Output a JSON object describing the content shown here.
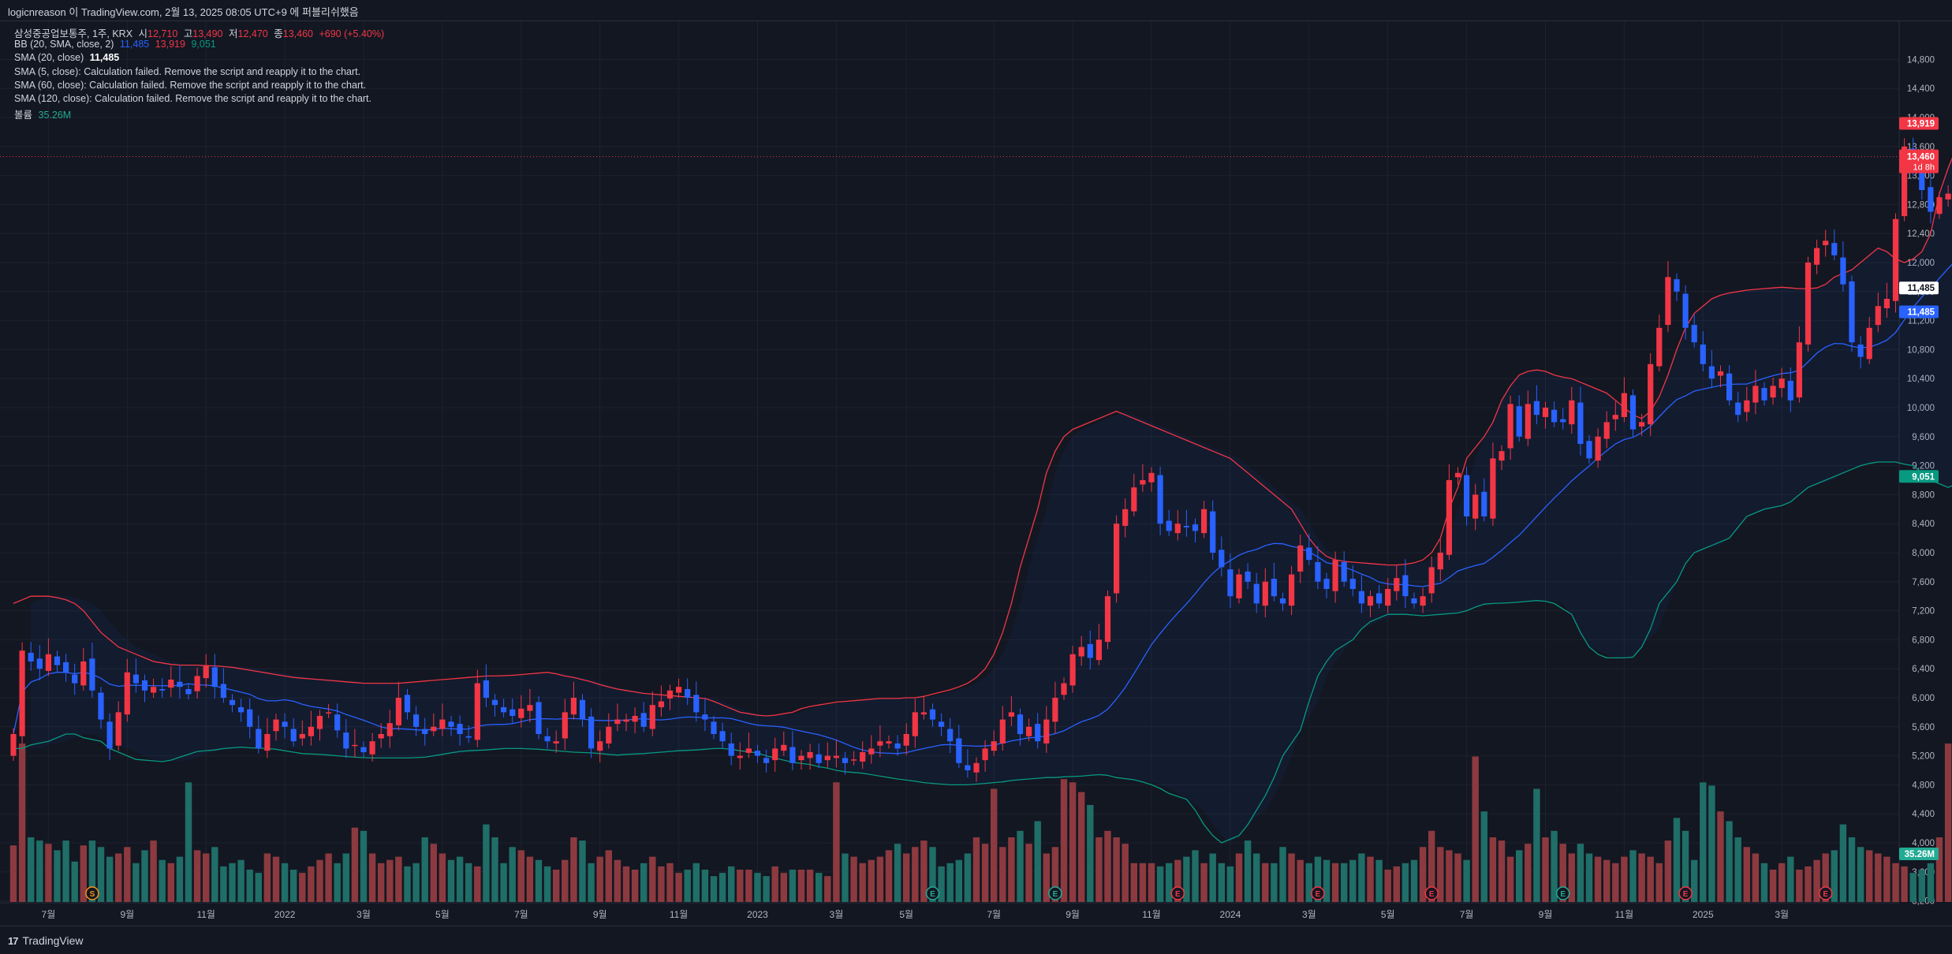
{
  "header": {
    "text": "logicnreason 이 TradingView.com, 2월 13, 2025 08:05 UTC+9 에 퍼블리쉬했음"
  },
  "legend": {
    "symbol": "삼성중공업보통주, 1주, KRX",
    "o_label": "시",
    "o_val": "12,710",
    "h_label": "고",
    "h_val": "13,490",
    "l_label": "저",
    "l_val": "12,470",
    "c_label": "종",
    "c_val": "13,460",
    "chg": "+690 (+5.40%)",
    "bb_label": "BB (20, SMA, close, 2)",
    "bb_basis": "11,485",
    "bb_upper": "13,919",
    "bb_lower": "9,051",
    "sma20_label": "SMA (20, close)",
    "sma20_val": "11,485",
    "sma5": "SMA (5, close): Calculation failed. Remove the script and reapply it to the chart.",
    "sma60": "SMA (60, close): Calculation failed. Remove the script and reapply it to the chart.",
    "sma120": "SMA (120, close): Calculation failed. Remove the script and reapply it to the chart.",
    "vol_label": "볼륨",
    "vol_val": "35.26M"
  },
  "price_labels": {
    "upper": "13,919",
    "last": "13,460",
    "countdown": "1d 8h",
    "sma": "11,485",
    "basis": "11,485",
    "lower": "9,051",
    "volume": "35.26M"
  },
  "footer": {
    "brand": "TradingView",
    "logo": "17"
  },
  "colors": {
    "bg": "#131722",
    "up": "#f23645",
    "down": "#2962ff",
    "bb_upper": "#f23645",
    "bb_basis": "#2962ff",
    "bb_lower": "#089981",
    "vol_up": "#8c3a3f",
    "vol_down": "#1f6e67",
    "grid": "#1e222d",
    "text": "#b2b5be"
  },
  "chart_data": {
    "type": "candlestick",
    "title": "삼성중공업보통주, 1주, KRX",
    "y_ticks": [
      3200,
      3600,
      4000,
      4400,
      4800,
      5200,
      5600,
      6000,
      6400,
      6800,
      7200,
      7600,
      8000,
      8400,
      8800,
      9200,
      9600,
      10000,
      10400,
      10800,
      11200,
      11600,
      12000,
      12400,
      12800,
      13200,
      13600,
      14000,
      14400,
      14800
    ],
    "x_ticks": [
      {
        "i": 4,
        "label": "7월"
      },
      {
        "i": 13,
        "label": "9월"
      },
      {
        "i": 22,
        "label": "11월"
      },
      {
        "i": 31,
        "label": "2022"
      },
      {
        "i": 40,
        "label": "3월"
      },
      {
        "i": 49,
        "label": "5월"
      },
      {
        "i": 58,
        "label": "7월"
      },
      {
        "i": 67,
        "label": "9월"
      },
      {
        "i": 76,
        "label": "11월"
      },
      {
        "i": 85,
        "label": "2023"
      },
      {
        "i": 94,
        "label": "3월"
      },
      {
        "i": 102,
        "label": "5월"
      },
      {
        "i": 112,
        "label": "7월"
      },
      {
        "i": 121,
        "label": "9월"
      },
      {
        "i": 130,
        "label": "11월"
      },
      {
        "i": 139,
        "label": "2024"
      },
      {
        "i": 148,
        "label": "3월"
      },
      {
        "i": 157,
        "label": "5월"
      },
      {
        "i": 166,
        "label": "7월"
      },
      {
        "i": 175,
        "label": "9월"
      },
      {
        "i": 184,
        "label": "11월"
      },
      {
        "i": 193,
        "label": "2025"
      },
      {
        "i": 202,
        "label": "3월"
      }
    ],
    "closes": [
      5500,
      6650,
      6500,
      6400,
      6600,
      6450,
      6350,
      6200,
      6500,
      6100,
      5700,
      5300,
      5800,
      6350,
      6200,
      6100,
      6150,
      6100,
      6250,
      6150,
      6050,
      6300,
      6450,
      6150,
      6000,
      5900,
      5800,
      5600,
      5300,
      5500,
      5700,
      5600,
      5400,
      5500,
      5600,
      5750,
      5800,
      5550,
      5300,
      5350,
      5250,
      5400,
      5500,
      5650,
      6000,
      5800,
      5600,
      5500,
      5600,
      5700,
      5600,
      5500,
      5450,
      6200,
      6000,
      5900,
      5800,
      5750,
      5850,
      5900,
      5500,
      5400,
      5400,
      5800,
      6000,
      5700,
      5300,
      5400,
      5600,
      5700,
      5700,
      5750,
      5600,
      5900,
      5950,
      6100,
      6150,
      6000,
      5800,
      5700,
      5500,
      5400,
      5200,
      5200,
      5300,
      5200,
      5100,
      5300,
      5350,
      5100,
      5200,
      5250,
      5100,
      5200,
      5200,
      5100,
      5150,
      5250,
      5300,
      5400,
      5400,
      5300,
      5500,
      5800,
      5800,
      5700,
      5600,
      5400,
      5100,
      5000,
      5100,
      5300,
      5400,
      5700,
      5800,
      5500,
      5600,
      5400,
      5700,
      6000,
      6200,
      6600,
      6700,
      6550,
      6800,
      7400,
      8400,
      8600,
      8900,
      9000,
      9100,
      8400,
      8300,
      8400,
      8350,
      8300,
      8600,
      8000,
      7800,
      7400,
      7700,
      7600,
      7300,
      7600,
      7400,
      7300,
      7700,
      8100,
      7900,
      7600,
      7500,
      7900,
      7600,
      7500,
      7300,
      7400,
      7300,
      7500,
      7650,
      7400,
      7300,
      7400,
      7800,
      8000,
      9000,
      9100,
      8500,
      8800,
      8500,
      9300,
      9400,
      10050,
      9600,
      10050,
      9900,
      10000,
      9800,
      9800,
      10100,
      9500,
      9300,
      9600,
      9800,
      9900,
      10200,
      9700,
      9800,
      10600,
      11100,
      11800,
      11600,
      11100,
      10900,
      10600,
      10400,
      10500,
      10100,
      9900,
      10100,
      10300,
      10100,
      10300,
      10400,
      10100,
      10900,
      12000,
      12200,
      12300,
      12100,
      11700,
      10900,
      10700,
      11100,
      11400,
      11500,
      12600,
      13600,
      13300,
      13000,
      12700,
      12900,
      12950,
      12900,
      13460
    ],
    "bb_upper": [
      7300,
      7350,
      7400,
      7400,
      7400,
      7380,
      7350,
      7300,
      7200,
      7050,
      6900,
      6800,
      6700,
      6650,
      6600,
      6550,
      6500,
      6480,
      6460,
      6450,
      6450,
      6450,
      6440,
      6440,
      6430,
      6420,
      6400,
      6380,
      6360,
      6340,
      6320,
      6300,
      6280,
      6270,
      6260,
      6250,
      6240,
      6230,
      6220,
      6210,
      6200,
      6200,
      6200,
      6200,
      6200,
      6210,
      6220,
      6230,
      6240,
      6250,
      6260,
      6270,
      6280,
      6290,
      6300,
      6300,
      6310,
      6320,
      6330,
      6340,
      6350,
      6330,
      6300,
      6280,
      6250,
      6220,
      6180,
      6150,
      6120,
      6100,
      6080,
      6060,
      6050,
      6040,
      6030,
      6020,
      6010,
      6000,
      5990,
      5950,
      5900,
      5850,
      5800,
      5780,
      5760,
      5750,
      5760,
      5780,
      5800,
      5850,
      5880,
      5900,
      5920,
      5940,
      5950,
      5960,
      5970,
      5980,
      5990,
      5990,
      5990,
      6000,
      6000,
      6020,
      6050,
      6080,
      6110,
      6150,
      6200,
      6280,
      6400,
      6600,
      6900,
      7300,
      7800,
      8200,
      8600,
      9100,
      9400,
      9600,
      9700,
      9750,
      9800,
      9850,
      9900,
      9950,
      9900,
      9850,
      9800,
      9750,
      9700,
      9650,
      9600,
      9550,
      9500,
      9450,
      9400,
      9350,
      9300,
      9200,
      9100,
      9000,
      8900,
      8800,
      8700,
      8600,
      8400,
      8200,
      8050,
      7950,
      7900,
      7880,
      7870,
      7860,
      7850,
      7840,
      7830,
      7830,
      7840,
      7860,
      7900,
      8000,
      8200,
      8600,
      8900,
      9300,
      9600,
      9800,
      10100,
      10300,
      10450,
      10500,
      10520,
      10500,
      10450,
      10420,
      10400,
      10350,
      10300,
      10250,
      10200,
      10100,
      10000,
      9900,
      9850,
      9950,
      10150,
      10450,
      10800,
      11100,
      11300,
      11400,
      11500,
      11550,
      11580,
      11600,
      11620,
      11630,
      11640,
      11650,
      11660,
      11650,
      11640,
      11640,
      11650,
      11700,
      11800,
      11850,
      11900,
      12000,
      12100,
      12200,
      12150,
      12050,
      12000,
      12050,
      12150,
      12400,
      12950,
      13300,
      13600,
      13919
    ],
    "bb_lower": [
      5300,
      5300,
      5350,
      5400,
      5450,
      5500,
      5500,
      5450,
      5400,
      5300,
      5250,
      5200,
      5150,
      5130,
      5120,
      5140,
      5180,
      5220,
      5260,
      5280,
      5300,
      5310,
      5320,
      5310,
      5300,
      5290,
      5270,
      5250,
      5230,
      5220,
      5210,
      5200,
      5190,
      5180,
      5170,
      5170,
      5170,
      5170,
      5170,
      5180,
      5200,
      5220,
      5240,
      5260,
      5270,
      5280,
      5290,
      5300,
      5300,
      5300,
      5290,
      5280,
      5270,
      5260,
      5250,
      5240,
      5230,
      5220,
      5210,
      5220,
      5230,
      5240,
      5250,
      5260,
      5270,
      5280,
      5290,
      5300,
      5300,
      5290,
      5270,
      5240,
      5200,
      5170,
      5140,
      5110,
      5080,
      5050,
      5030,
      5000,
      4980,
      4960,
      4940,
      4920,
      4900,
      4880,
      4850,
      4830,
      4820,
      4810,
      4800,
      4800,
      4810,
      4820,
      4830,
      4840,
      4860,
      4880,
      4890,
      4900,
      4900,
      4910,
      4920,
      4930,
      4940,
      4930,
      4900,
      4870,
      4840,
      4800,
      4750,
      4680,
      4600,
      4450,
      4250,
      4100,
      4000,
      4100,
      4250,
      4450,
      4650,
      4900,
      5200,
      5550,
      5950,
      6300,
      6500,
      6650,
      6800,
      6950,
      7050,
      7100,
      7150,
      7150,
      7140,
      7130,
      7140,
      7150,
      7170,
      7200,
      7250,
      7290,
      7300,
      7310,
      7320,
      7330,
      7340,
      7330,
      7300,
      7150,
      6900,
      6700,
      6600,
      6550,
      6550,
      6560,
      6700,
      6950,
      7300,
      7600,
      7850,
      8000,
      8050,
      8100,
      8200,
      8350,
      8500,
      8550,
      8600,
      8650,
      8700,
      8800,
      8900,
      8950,
      9000,
      9100,
      9150,
      9200,
      9230,
      9250,
      9250,
      9220,
      9200,
      9100,
      9000,
      8900,
      8950,
      9051
    ],
    "volume_rel": [
      0.35,
      0.98,
      0.4,
      0.38,
      0.36,
      0.32,
      0.38,
      0.25,
      0.35,
      0.38,
      0.34,
      0.28,
      0.3,
      0.34,
      0.24,
      0.32,
      0.38,
      0.26,
      0.24,
      0.28,
      0.74,
      0.32,
      0.3,
      0.34,
      0.22,
      0.24,
      0.26,
      0.2,
      0.18,
      0.3,
      0.28,
      0.24,
      0.2,
      0.18,
      0.22,
      0.26,
      0.3,
      0.24,
      0.3,
      0.46,
      0.44,
      0.3,
      0.24,
      0.26,
      0.28,
      0.22,
      0.24,
      0.4,
      0.36,
      0.3,
      0.26,
      0.28,
      0.24,
      0.22,
      0.48,
      0.4,
      0.24,
      0.34,
      0.32,
      0.28,
      0.26,
      0.22,
      0.2,
      0.26,
      0.4,
      0.38,
      0.24,
      0.28,
      0.32,
      0.26,
      0.22,
      0.2,
      0.24,
      0.28,
      0.22,
      0.24,
      0.18,
      0.2,
      0.24,
      0.2,
      0.16,
      0.18,
      0.22,
      0.2,
      0.2,
      0.18,
      0.16,
      0.22,
      0.18,
      0.2,
      0.2,
      0.2,
      0.18,
      0.16,
      0.74,
      0.3,
      0.28,
      0.24,
      0.26,
      0.28,
      0.32,
      0.36,
      0.3,
      0.34,
      0.38,
      0.34,
      0.22,
      0.24,
      0.26,
      0.3,
      0.4,
      0.36,
      0.7,
      0.34,
      0.4,
      0.44,
      0.36,
      0.5,
      0.3,
      0.34,
      0.76,
      0.74,
      0.68,
      0.6,
      0.4,
      0.44,
      0.4,
      0.36,
      0.24,
      0.24,
      0.24,
      0.22,
      0.24,
      0.26,
      0.28,
      0.32,
      0.24,
      0.3,
      0.24,
      0.22,
      0.3,
      0.38,
      0.3,
      0.24,
      0.24,
      0.34,
      0.3,
      0.26,
      0.24,
      0.28,
      0.26,
      0.24,
      0.24,
      0.26,
      0.3,
      0.28,
      0.26,
      0.2,
      0.22,
      0.24,
      0.26,
      0.34,
      0.44,
      0.34,
      0.32,
      0.3,
      0.26,
      0.9,
      0.56,
      0.4,
      0.38,
      0.28,
      0.32,
      0.36,
      0.7,
      0.4,
      0.44,
      0.36,
      0.3,
      0.36,
      0.3,
      0.28,
      0.26,
      0.24,
      0.28,
      0.32,
      0.3,
      0.28,
      0.24,
      0.38,
      0.52,
      0.44,
      0.26,
      0.74,
      0.72,
      0.56,
      0.5,
      0.4,
      0.34,
      0.3,
      0.24,
      0.2,
      0.24,
      0.28,
      0.2,
      0.22,
      0.26,
      0.3,
      0.32,
      0.48,
      0.4,
      0.34,
      0.32,
      0.3,
      0.28,
      0.24,
      0.22,
      0.18,
      0.2,
      0.24,
      0.4,
      0.98,
      0.52,
      0.4,
      0.28,
      0.3,
      0.36,
      0.5
    ]
  }
}
